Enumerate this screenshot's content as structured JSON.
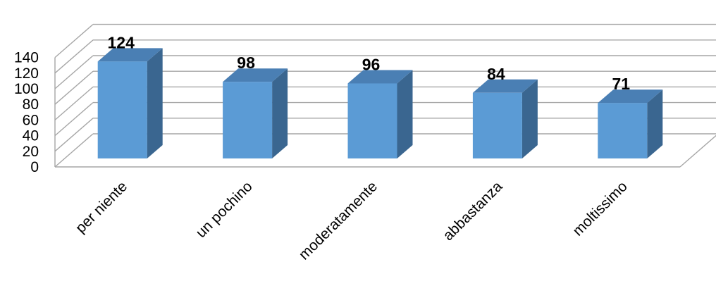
{
  "chart_data": {
    "type": "bar",
    "categories": [
      "per niente",
      "un pochino",
      "moderatamente",
      "abbastanza",
      "moltissimo"
    ],
    "values": [
      124,
      98,
      96,
      84,
      71
    ],
    "y_ticks": [
      "0",
      "20",
      "40",
      "60",
      "80",
      "100",
      "120",
      "140"
    ],
    "data_labels": [
      "124",
      "98",
      "96",
      "84",
      "71"
    ],
    "ylim": [
      0,
      140
    ],
    "grid": true,
    "style": "3d-column",
    "colors": {
      "bar_front": "#5B9BD5",
      "bar_side": "#3A6690",
      "bar_top": "#4A7FB4",
      "gridline": "#A6A6A6"
    }
  }
}
